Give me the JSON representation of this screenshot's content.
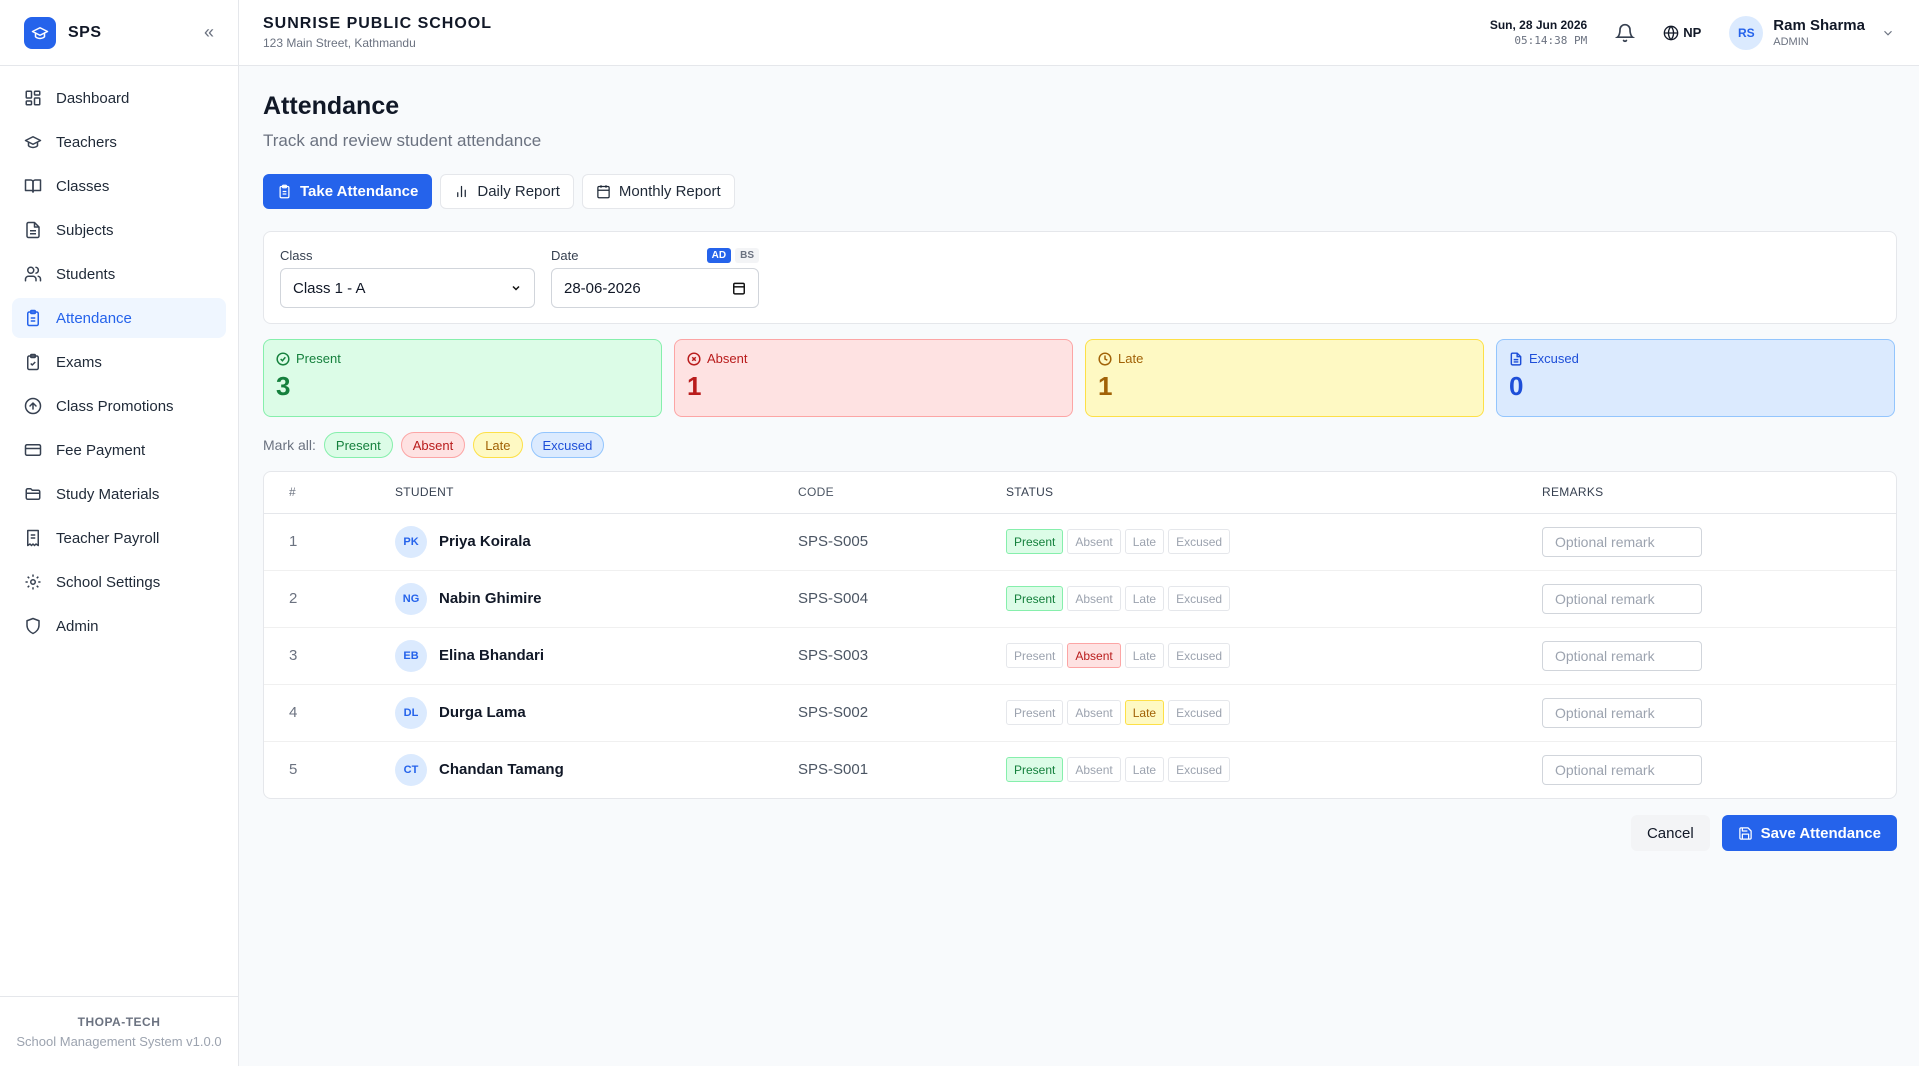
{
  "brand": {
    "short": "SPS"
  },
  "sidebar": {
    "items": [
      {
        "label": "Dashboard",
        "icon": "dashboard-icon"
      },
      {
        "label": "Teachers",
        "icon": "graduation-cap-icon"
      },
      {
        "label": "Classes",
        "icon": "book-open-icon"
      },
      {
        "label": "Subjects",
        "icon": "file-text-icon"
      },
      {
        "label": "Students",
        "icon": "users-icon"
      },
      {
        "label": "Attendance",
        "icon": "clipboard-icon",
        "active": true
      },
      {
        "label": "Exams",
        "icon": "clipboard-check-icon"
      },
      {
        "label": "Class Promotions",
        "icon": "arrow-up-circle-icon"
      },
      {
        "label": "Fee Payment",
        "icon": "credit-card-icon"
      },
      {
        "label": "Study Materials",
        "icon": "folder-open-icon"
      },
      {
        "label": "Teacher Payroll",
        "icon": "receipt-icon"
      },
      {
        "label": "School Settings",
        "icon": "gear-icon"
      },
      {
        "label": "Admin",
        "icon": "shield-icon"
      }
    ],
    "footer_brand": "THOPA-TECH",
    "footer_version": "School Management System v1.0.0"
  },
  "header": {
    "school_name": "SUNRISE PUBLIC SCHOOL",
    "school_address": "123 Main Street, Kathmandu",
    "date": "Sun, 28 Jun 2026",
    "time": "05:14:38 PM",
    "language": "NP",
    "user_initials": "RS",
    "user_name": "Ram Sharma",
    "user_role": "ADMIN"
  },
  "page": {
    "title": "Attendance",
    "subtitle": "Track and review student attendance"
  },
  "tabs": [
    "Take Attendance",
    "Daily Report",
    "Monthly Report"
  ],
  "filters": {
    "class_label": "Class",
    "class_value": "Class 1 - A",
    "date_label": "Date",
    "date_value": "28-06-2026",
    "toggle_ad": "AD",
    "toggle_bs": "BS"
  },
  "stats": {
    "present_label": "Present",
    "present_value": "3",
    "absent_label": "Absent",
    "absent_value": "1",
    "late_label": "Late",
    "late_value": "1",
    "excused_label": "Excused",
    "excused_value": "0"
  },
  "markall": {
    "label": "Mark all:",
    "options": [
      "Present",
      "Absent",
      "Late",
      "Excused"
    ]
  },
  "table": {
    "headers": [
      "#",
      "STUDENT",
      "CODE",
      "STATUS",
      "REMARKS"
    ],
    "status_options": [
      "Present",
      "Absent",
      "Late",
      "Excused"
    ],
    "remark_placeholder": "Optional remark",
    "rows": [
      {
        "num": "1",
        "initials": "PK",
        "name": "Priya Koirala",
        "code": "SPS-S005",
        "status": "Present"
      },
      {
        "num": "2",
        "initials": "NG",
        "name": "Nabin Ghimire",
        "code": "SPS-S004",
        "status": "Present"
      },
      {
        "num": "3",
        "initials": "EB",
        "name": "Elina Bhandari",
        "code": "SPS-S003",
        "status": "Absent"
      },
      {
        "num": "4",
        "initials": "DL",
        "name": "Durga Lama",
        "code": "SPS-S002",
        "status": "Late"
      },
      {
        "num": "5",
        "initials": "CT",
        "name": "Chandan Tamang",
        "code": "SPS-S001",
        "status": "Present"
      }
    ]
  },
  "actions": {
    "cancel": "Cancel",
    "save": "Save Attendance"
  },
  "colors": {
    "accent": "#2563eb",
    "present": "#15803d",
    "absent": "#b91c1c",
    "late": "#a16207",
    "excused": "#1d4ed8"
  }
}
